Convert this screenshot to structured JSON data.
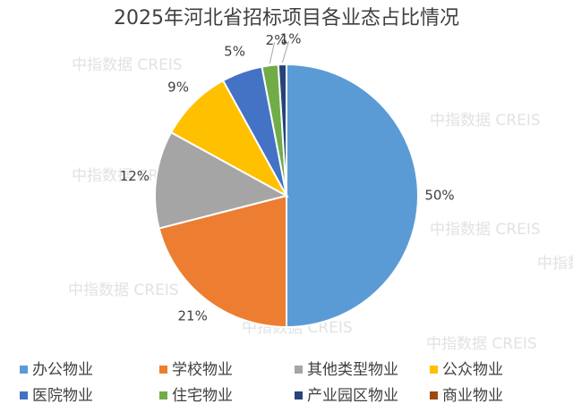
{
  "chart_data": {
    "type": "pie",
    "title": "2025年河北省招标项目各业态占比情况",
    "categories": [
      "办公物业",
      "学校物业",
      "其他类型物业",
      "公众物业",
      "医院物业",
      "住宅物业",
      "产业园区物业",
      "商业物业"
    ],
    "values": [
      50,
      21,
      12,
      9,
      5,
      2,
      1,
      0
    ],
    "labels": [
      "50%",
      "21%",
      "12%",
      "9%",
      "5%",
      "2%",
      "1%",
      ""
    ],
    "colors": [
      "#5B9BD5",
      "#ED7D31",
      "#A5A5A5",
      "#FFC000",
      "#4472C4",
      "#70AD47",
      "#264478",
      "#9E480E"
    ],
    "legend_position": "bottom",
    "watermark": "中指数据 CREIS"
  }
}
